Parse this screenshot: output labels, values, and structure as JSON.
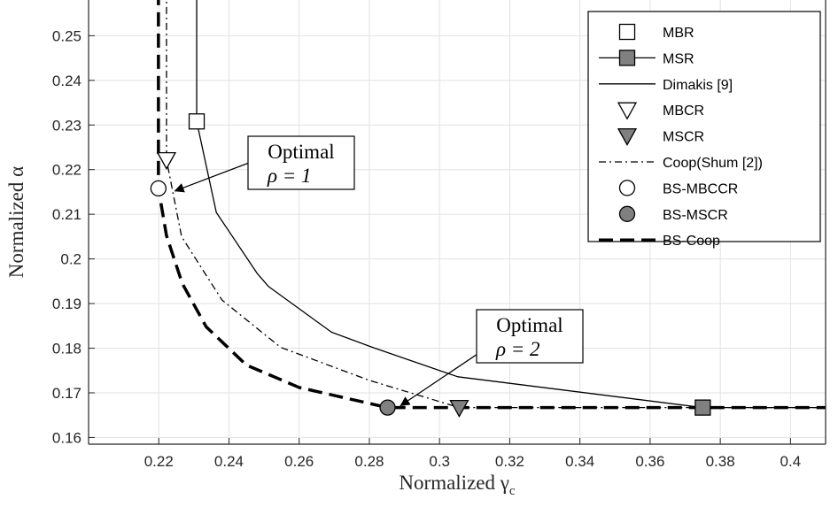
{
  "chart_data": {
    "type": "line",
    "xlabel": "Normalized γc",
    "ylabel": "Normalized α",
    "xlim": [
      0.2,
      0.41
    ],
    "ylim": [
      0.1585,
      0.258
    ],
    "grid": true,
    "legend_position": "top-right",
    "xticks": [
      0.22,
      0.24,
      0.26,
      0.28,
      0.3,
      0.32,
      0.34,
      0.36,
      0.38,
      0.4
    ],
    "xtick_labels": [
      "0.22",
      "0.24",
      "0.26",
      "0.28",
      "0.3",
      "0.32",
      "0.34",
      "0.36",
      "0.38",
      "0.4"
    ],
    "yticks": [
      0.16,
      0.17,
      0.18,
      0.19,
      0.2,
      0.21,
      0.22,
      0.23,
      0.24,
      0.25
    ],
    "ytick_labels": [
      "0.16",
      "0.17",
      "0.18",
      "0.19",
      "0.2",
      "0.21",
      "0.22",
      "0.23",
      "0.24",
      "0.25"
    ],
    "series": [
      {
        "name": "MBR",
        "kind": "marker",
        "marker": "square",
        "fill": "#ffffff",
        "x": [
          0.2308
        ],
        "y": [
          0.2308
        ]
      },
      {
        "name": "MSR",
        "kind": "marker-line",
        "marker": "square",
        "fill": "#808080",
        "x": [
          0.375
        ],
        "y": [
          0.1667
        ]
      },
      {
        "name": "Dimakis [9]",
        "kind": "line",
        "dash": "solid",
        "width": 1.3,
        "x": [
          0.2308,
          0.2308,
          0.2364,
          0.248,
          0.2513,
          0.2692,
          0.2812,
          0.3052,
          0.375,
          0.41
        ],
        "y": [
          0.26,
          0.2308,
          0.2104,
          0.1968,
          0.1938,
          0.1836,
          0.1801,
          0.1736,
          0.1667,
          0.1667
        ]
      },
      {
        "name": "MBCR",
        "kind": "marker",
        "marker": "triangle-down",
        "fill": "#ffffff",
        "x": [
          0.2222
        ],
        "y": [
          0.2222
        ]
      },
      {
        "name": "MSCR",
        "kind": "marker",
        "marker": "triangle-down",
        "fill": "#808080",
        "x": [
          0.3056
        ],
        "y": [
          0.1667
        ]
      },
      {
        "name": "Coop(Shum [2])",
        "kind": "line",
        "dash": "dashdot",
        "width": 1.3,
        "x": [
          0.2222,
          0.2222,
          0.2265,
          0.238,
          0.2547,
          0.28,
          0.3056,
          0.41
        ],
        "y": [
          0.26,
          0.2222,
          0.205,
          0.1908,
          0.1802,
          0.1728,
          0.1667,
          0.1667
        ]
      },
      {
        "name": "BS-MBCCR",
        "kind": "marker",
        "marker": "circle",
        "fill": "#ffffff",
        "x": [
          0.2199
        ],
        "y": [
          0.2158
        ]
      },
      {
        "name": "BS-MSCR",
        "kind": "marker",
        "marker": "circle",
        "fill": "#808080",
        "x": [
          0.2852
        ],
        "y": [
          0.1667
        ]
      },
      {
        "name": "BS-Coop",
        "kind": "line",
        "dash": "dashed",
        "width": 3.5,
        "x": [
          0.2199,
          0.2199,
          0.2222,
          0.2267,
          0.2335,
          0.245,
          0.26,
          0.2852,
          0.41
        ],
        "y": [
          0.26,
          0.2158,
          0.2052,
          0.1945,
          0.1848,
          0.1762,
          0.1712,
          0.1667,
          0.1667
        ]
      }
    ],
    "annotations": [
      {
        "title": "Optimal",
        "rho_label": "ρ = 1",
        "target_x": 0.2225,
        "target_y": 0.2148
      },
      {
        "title": "Optimal",
        "rho_label": "ρ = 2",
        "target_x": 0.2868,
        "target_y": 0.1667
      }
    ]
  }
}
